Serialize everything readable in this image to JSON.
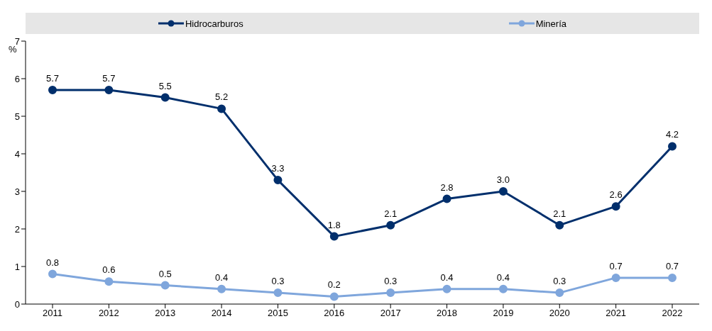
{
  "chart_data": {
    "type": "line",
    "ylabel": "%",
    "categories": [
      "2011",
      "2012",
      "2013",
      "2014",
      "2015",
      "2016",
      "2017",
      "2018",
      "2019",
      "2020",
      "2021",
      "2022"
    ],
    "series": [
      {
        "name": "Hidrocarburos",
        "color": "#002f6c",
        "values": [
          5.7,
          5.7,
          5.5,
          5.2,
          3.3,
          1.8,
          2.1,
          2.8,
          3.0,
          2.1,
          2.6,
          4.2
        ],
        "value_labels": [
          "5.7",
          "5.7",
          "5.5",
          "5.2",
          "3.3",
          "1.8",
          "2.1",
          "2.8",
          "3.0",
          "2.1",
          "2.6",
          "4.2"
        ]
      },
      {
        "name": "Minería",
        "color": "#7fa6dc",
        "values": [
          0.8,
          0.6,
          0.5,
          0.4,
          0.3,
          0.2,
          0.3,
          0.4,
          0.4,
          0.3,
          0.7,
          0.7
        ],
        "value_labels": [
          "0.8",
          "0.6",
          "0.5",
          "0.4",
          "0.3",
          "0.2",
          "0.3",
          "0.4",
          "0.4",
          "0.3",
          "0.7",
          "0.7"
        ]
      }
    ],
    "ylim": [
      0,
      7
    ],
    "yticks": [
      0,
      1,
      2,
      3,
      4,
      5,
      6,
      7
    ],
    "grid": false,
    "legend": "top",
    "marker": "circle",
    "line_style": "solid"
  }
}
